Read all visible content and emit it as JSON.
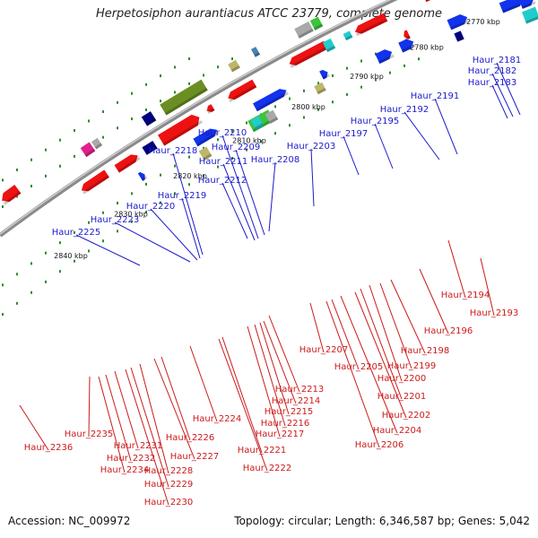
{
  "title": "Herpetosiphon aurantiacus ATCC 23779, complete genome",
  "footer": {
    "accession_label": "Accession:",
    "accession": "NC_009972",
    "topology_text": "Topology: circular; Length: 6,346,587 bp; Genes: 5,042"
  },
  "colors": {
    "backbone": "#8a8a8a",
    "tick": "#2e8b2e",
    "label_top": "#1a1acc",
    "label_bottom": "#cc1a1a",
    "gene_red": "#ee1111",
    "gene_blue": "#1133ee",
    "gene_olive": "#6b8e23",
    "gene_green": "#3cc43c",
    "gene_cyan": "#22cccc",
    "gene_gray": "#a9a9a9",
    "gene_khaki": "#bdb76b",
    "gene_navy": "#000080",
    "gene_magenta": "#e0208c",
    "gene_steel": "#4682b4",
    "gene_orange": "#f0a020"
  },
  "kbp_labels": [
    "2770 kbp",
    "2780 kbp",
    "2790 kbp",
    "2800 kbp",
    "2810 kbp",
    "2820 kbp",
    "2830 kbp",
    "2840 kbp"
  ],
  "top_genes": [
    "Haur_2181",
    "Haur_2182",
    "Haur_2183",
    "Haur_2191",
    "Haur_2192",
    "Haur_2195",
    "Haur_2197",
    "Haur_2203",
    "Haur_2208",
    "Haur_2209",
    "Haur_2210",
    "Haur_2211",
    "Haur_2212",
    "Haur_2218",
    "Haur_2219",
    "Haur_2220",
    "Haur_2223",
    "Haur_2225"
  ],
  "bottom_genes": [
    "Haur_2193",
    "Haur_2194",
    "Haur_2196",
    "Haur_2198",
    "Haur_2199",
    "Haur_2200",
    "Haur_2201",
    "Haur_2202",
    "Haur_2204",
    "Haur_2205",
    "Haur_2206",
    "Haur_2207",
    "Haur_2213",
    "Haur_2214",
    "Haur_2215",
    "Haur_2216",
    "Haur_2217",
    "Haur_2221",
    "Haur_2222",
    "Haur_2224",
    "Haur_2226",
    "Haur_2227",
    "Haur_2228",
    "Haur_2229",
    "Haur_2230",
    "Haur_2231",
    "Haur_2232",
    "Haur_2234",
    "Haur_2235",
    "Haur_2236"
  ]
}
